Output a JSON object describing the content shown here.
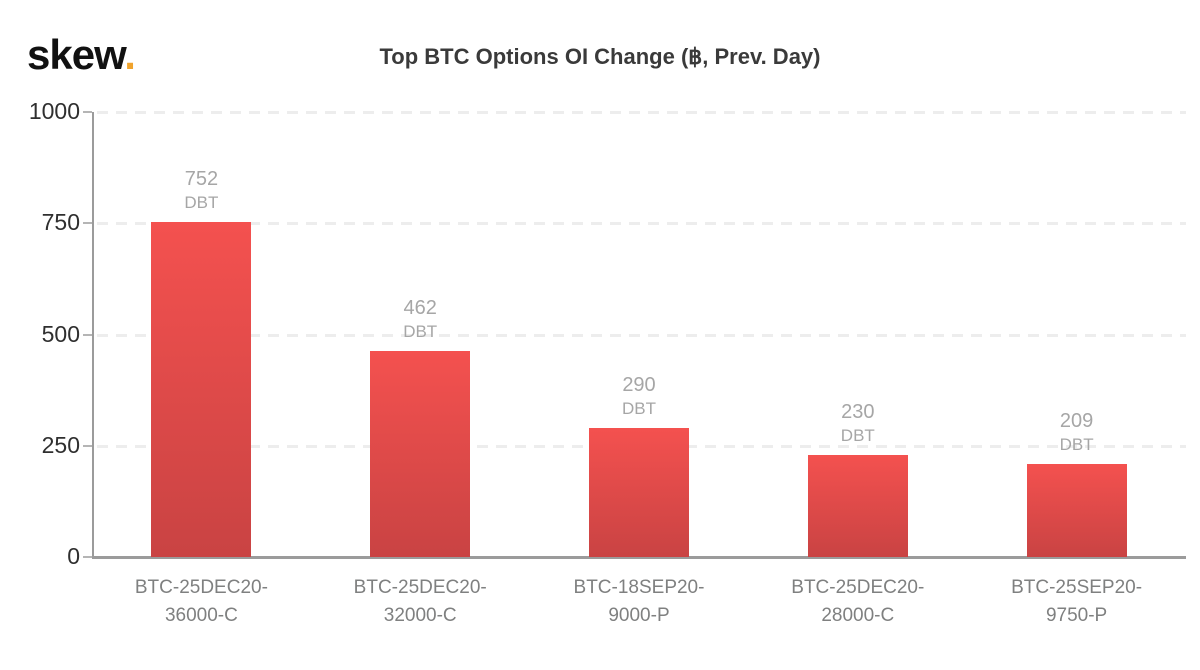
{
  "logo": {
    "text": "skew",
    "dot": "."
  },
  "chart_data": {
    "type": "bar",
    "title": "Top BTC Options OI Change (฿, Prev. Day)",
    "unit": "DBT",
    "categories": [
      "BTC-25DEC20-36000-C",
      "BTC-25DEC20-32000-C",
      "BTC-18SEP20-9000-P",
      "BTC-25DEC20-28000-C",
      "BTC-25SEP20-9750-P"
    ],
    "category_lines": [
      [
        "BTC-25DEC20-",
        "36000-C"
      ],
      [
        "BTC-25DEC20-",
        "32000-C"
      ],
      [
        "BTC-18SEP20-",
        "9000-P"
      ],
      [
        "BTC-25DEC20-",
        "28000-C"
      ],
      [
        "BTC-25SEP20-",
        "9750-P"
      ]
    ],
    "values": [
      752,
      462,
      290,
      230,
      209
    ],
    "yticks": [
      0,
      250,
      500,
      750,
      1000
    ],
    "ylim": [
      0,
      1000
    ],
    "xlabel": "",
    "ylabel": "",
    "grid": "dashed-horizontal",
    "legend": "none",
    "colors": {
      "bar_top": "#f4514f",
      "bar_bottom": "#c94343",
      "bar_value_label": "#a6a6a6",
      "axis": "#9b9b9b",
      "gridline": "#ededed",
      "ytick_text": "#2f2f2f",
      "xtick_text": "#7f8080",
      "title": "#3a3a3a",
      "logo_dot": "#f0a32c"
    }
  }
}
